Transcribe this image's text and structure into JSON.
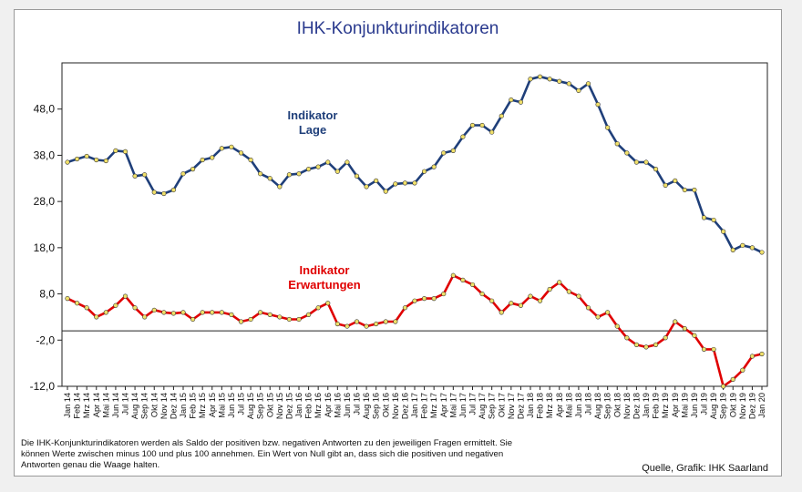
{
  "title": "IHK-Konjunkturindikatoren",
  "note": "Die IHK-Konjunkturindikatoren werden als Saldo der positiven bzw. negativen Antworten zu den jeweiligen Fragen ermittelt. Sie können Werte zwischen minus 100 und plus 100 annehmen. Ein Wert von Null gibt an, dass sich die positiven und negativen Antworten genau die Waage halten.",
  "source": "Quelle, Grafik: IHK Saarland",
  "chart_data": {
    "type": "line",
    "title": "IHK-Konjunkturindikatoren",
    "xlabel": "",
    "ylabel": "",
    "ylim": [
      -12.0,
      58.0
    ],
    "yticks": [
      "-12,0",
      "-2,0",
      "8,0",
      "18,0",
      "28,0",
      "38,0",
      "48,0"
    ],
    "x": [
      "Jan 14",
      "Feb 14",
      "Mrz 14",
      "Apr 14",
      "Mai 14",
      "Jun 14",
      "Jul 14",
      "Aug 14",
      "Sep 14",
      "Okt 14",
      "Nov 14",
      "Dez 14",
      "Jan 15",
      "Feb 15",
      "Mrz 15",
      "Apr 15",
      "Mai 15",
      "Jun 15",
      "Jul 15",
      "Aug 15",
      "Sep 15",
      "Okt 15",
      "Nov 15",
      "Dez 15",
      "Jan 16",
      "Feb 16",
      "Mrz 16",
      "Apr 16",
      "Mai 16",
      "Jun 16",
      "Jul 16",
      "Aug 16",
      "Sep 16",
      "Okt 16",
      "Nov 16",
      "Dez 16",
      "Jan 17",
      "Feb 17",
      "Mrz 17",
      "Apr 17",
      "Mai 17",
      "Jun 17",
      "Jul 17",
      "Aug 17",
      "Sep 17",
      "Okt 17",
      "Nov 17",
      "Dez 17",
      "Jan 18",
      "Feb 18",
      "Mrz 18",
      "Apr 18",
      "Mai 18",
      "Jun 18",
      "Jul 18",
      "Aug 18",
      "Sep 18",
      "Okt 18",
      "Nov 18",
      "Dez 18",
      "Jan 19",
      "Feb 19",
      "Mrz 19",
      "Apr 19",
      "Mai 19",
      "Jun 19",
      "Jul 19",
      "Aug 19",
      "Sep 19",
      "Okt 19",
      "Nov 19",
      "Dez 19",
      "Jan 20"
    ],
    "grid": false,
    "reference_line": 0,
    "series": [
      {
        "name": "Indikator Lage",
        "color": "#1f3f7a",
        "marker_color": "#f0e06a",
        "values": [
          36.5,
          37.2,
          37.8,
          37.0,
          36.8,
          39.0,
          38.8,
          33.5,
          33.8,
          30.0,
          29.7,
          30.5,
          34.0,
          35.0,
          37.0,
          37.5,
          39.5,
          39.8,
          38.5,
          37.0,
          34.0,
          33.0,
          31.2,
          33.8,
          34.0,
          35.0,
          35.5,
          36.5,
          34.5,
          36.5,
          33.5,
          31.2,
          32.5,
          30.2,
          31.8,
          32.0,
          32.0,
          34.5,
          35.5,
          38.5,
          39.0,
          42.0,
          44.5,
          44.5,
          43.0,
          46.5,
          50.0,
          49.5,
          54.5,
          55.0,
          54.5,
          54.0,
          53.5,
          52.0,
          53.5,
          49.0,
          44.0,
          40.5,
          38.5,
          36.5,
          36.5,
          35.0,
          31.5,
          32.5,
          30.5,
          30.5,
          24.5,
          24.0,
          21.5,
          17.5,
          18.5,
          18.0,
          17.0
        ]
      },
      {
        "name": "Indikator Erwartungen",
        "color": "#e00000",
        "marker_color": "#f0e06a",
        "values": [
          7.0,
          6.0,
          5.0,
          3.0,
          4.0,
          5.5,
          7.5,
          5.0,
          3.0,
          4.5,
          4.0,
          3.8,
          4.0,
          2.5,
          4.0,
          4.0,
          4.0,
          3.5,
          2.0,
          2.5,
          4.0,
          3.5,
          3.0,
          2.5,
          2.5,
          3.5,
          5.0,
          6.0,
          1.5,
          1.0,
          2.0,
          1.0,
          1.5,
          2.0,
          2.0,
          5.0,
          6.5,
          7.0,
          7.0,
          8.0,
          12.0,
          11.0,
          10.0,
          8.0,
          6.5,
          4.0,
          6.0,
          5.5,
          7.5,
          6.5,
          9.0,
          10.5,
          8.5,
          7.5,
          5.0,
          3.0,
          4.0,
          1.0,
          -1.5,
          -3.0,
          -3.5,
          -3.0,
          -1.5,
          2.0,
          0.5,
          -1.0,
          -4.0,
          -4.0,
          -12.0,
          -10.5,
          -8.5,
          -5.5,
          -5.0
        ]
      }
    ],
    "annotations": [
      {
        "series": "Indikator Lage",
        "lines": [
          "Indikator",
          "Lage"
        ]
      },
      {
        "series": "Indikator Erwartungen",
        "lines": [
          "Indikator",
          "Erwartungen"
        ]
      }
    ]
  }
}
